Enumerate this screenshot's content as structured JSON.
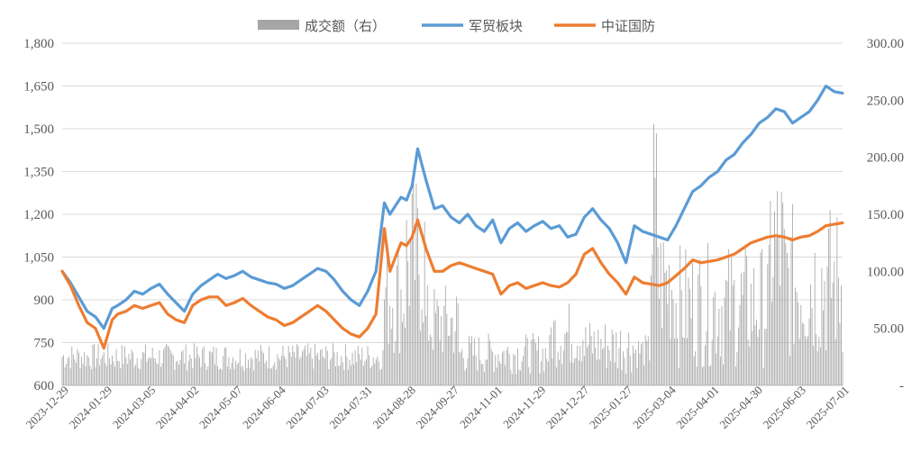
{
  "chart_data": {
    "type": "line",
    "title": "",
    "legend": [
      {
        "name": "成交额（右）",
        "color": "#a6a6a6",
        "kind": "bar"
      },
      {
        "name": "军贸板块",
        "color": "#5b9bd5",
        "kind": "line"
      },
      {
        "name": "中证国防",
        "color": "#ed7d31",
        "kind": "line"
      }
    ],
    "legend_position": "top",
    "y_left": {
      "min": 600,
      "max": 1800,
      "ticks": [
        "600",
        "750",
        "900",
        "1,050",
        "1,200",
        "1,350",
        "1,500",
        "1,650",
        "1,800"
      ]
    },
    "y_right": {
      "min": 0,
      "max": 300,
      "ticks": [
        "-",
        "50.00",
        "100.00",
        "150.00",
        "200.00",
        "250.00",
        "300.00"
      ]
    },
    "x_ticks": [
      "2023-12-29",
      "2024-01-29",
      "2024-03-05",
      "2024-04-02",
      "2024-05-07",
      "2024-06-04",
      "2024-07-03",
      "2024-07-31",
      "2024-08-28",
      "2024-09-27",
      "2024-11-01",
      "2024-11-29",
      "2024-12-27",
      "2025-01-27",
      "2025-03-04",
      "2025-04-01",
      "2025-04-30",
      "2025-06-03",
      "2025-07-01"
    ],
    "grid": "horizontal",
    "series": [
      {
        "name": "军贸板块",
        "axis": "left",
        "color": "#5b9bd5",
        "x_index": [
          0,
          6,
          12,
          18,
          24,
          30,
          36,
          40,
          46,
          52,
          58,
          64,
          70,
          76,
          82,
          88,
          94,
          100,
          106,
          112,
          118,
          124,
          130,
          136,
          142,
          148,
          154,
          160,
          166,
          172,
          178,
          184,
          190,
          196,
          202,
          208,
          214,
          220,
          226,
          232,
          236,
          240,
          244,
          248,
          252,
          256,
          262,
          268,
          274,
          280,
          286,
          292,
          298,
          304,
          310,
          316,
          322,
          328,
          334,
          340,
          346,
          352,
          358,
          364,
          370,
          376,
          382,
          388,
          394,
          400,
          406,
          412,
          418,
          424,
          430,
          436,
          442,
          448,
          454,
          460,
          466,
          472,
          478,
          484,
          490,
          496,
          502,
          508,
          514,
          520,
          526,
          532,
          538,
          544,
          550,
          556,
          562
        ],
        "values": [
          1000,
          960,
          910,
          860,
          840,
          800,
          870,
          880,
          900,
          930,
          920,
          940,
          955,
          920,
          890,
          860,
          920,
          950,
          970,
          990,
          975,
          985,
          1000,
          980,
          970,
          960,
          955,
          940,
          950,
          970,
          990,
          1010,
          1000,
          970,
          930,
          900,
          880,
          930,
          1000,
          1240,
          1200,
          1230,
          1260,
          1250,
          1300,
          1430,
          1320,
          1220,
          1230,
          1190,
          1170,
          1200,
          1160,
          1140,
          1180,
          1100,
          1150,
          1170,
          1140,
          1160,
          1175,
          1150,
          1160,
          1120,
          1130,
          1190,
          1220,
          1180,
          1150,
          1100,
          1030,
          1160,
          1140,
          1130,
          1120,
          1110,
          1160,
          1220,
          1280,
          1300,
          1330,
          1350,
          1390,
          1410,
          1450,
          1480,
          1520,
          1540,
          1570,
          1560,
          1520,
          1540,
          1560,
          1600,
          1650,
          1630,
          1625
        ]
      },
      {
        "name": "中证国防",
        "axis": "left",
        "color": "#ed7d31",
        "x_index": [
          0,
          6,
          12,
          18,
          24,
          30,
          36,
          40,
          46,
          52,
          58,
          64,
          70,
          76,
          82,
          88,
          94,
          100,
          106,
          112,
          118,
          124,
          130,
          136,
          142,
          148,
          154,
          160,
          166,
          172,
          178,
          184,
          190,
          196,
          202,
          208,
          214,
          220,
          226,
          232,
          236,
          240,
          244,
          248,
          252,
          256,
          262,
          268,
          274,
          280,
          286,
          292,
          298,
          304,
          310,
          316,
          322,
          328,
          334,
          340,
          346,
          352,
          358,
          364,
          370,
          376,
          382,
          388,
          394,
          400,
          406,
          412,
          418,
          424,
          430,
          436,
          442,
          448,
          454,
          460,
          466,
          472,
          478,
          484,
          490,
          496,
          502,
          508,
          514,
          520,
          526,
          532,
          538,
          544,
          550,
          556,
          562
        ],
        "values": [
          1000,
          950,
          880,
          820,
          800,
          730,
          830,
          850,
          860,
          880,
          870,
          880,
          890,
          850,
          830,
          820,
          880,
          900,
          910,
          910,
          880,
          890,
          905,
          880,
          860,
          840,
          830,
          810,
          820,
          840,
          860,
          880,
          860,
          830,
          800,
          780,
          770,
          800,
          850,
          1150,
          1000,
          1050,
          1100,
          1090,
          1120,
          1180,
          1080,
          1000,
          1000,
          1020,
          1030,
          1020,
          1010,
          1000,
          990,
          920,
          950,
          960,
          940,
          950,
          960,
          950,
          945,
          960,
          990,
          1060,
          1080,
          1030,
          990,
          960,
          920,
          980,
          960,
          955,
          950,
          960,
          985,
          1010,
          1040,
          1030,
          1035,
          1040,
          1050,
          1060,
          1080,
          1100,
          1110,
          1120,
          1125,
          1120,
          1110,
          1120,
          1125,
          1140,
          1160,
          1165,
          1170
        ]
      }
    ],
    "bars": {
      "name": "成交额（右）",
      "axis": "right",
      "color": "#a6a6a6",
      "segments": [
        {
          "from": 0,
          "to": 232,
          "base": 25,
          "amp": 12
        },
        {
          "from": 232,
          "to": 248,
          "base": 80,
          "amp": 55
        },
        {
          "from": 248,
          "to": 262,
          "base": 110,
          "amp": 75
        },
        {
          "from": 262,
          "to": 286,
          "base": 55,
          "amp": 35
        },
        {
          "from": 286,
          "to": 352,
          "base": 28,
          "amp": 18
        },
        {
          "from": 352,
          "to": 376,
          "base": 45,
          "amp": 30
        },
        {
          "from": 376,
          "to": 412,
          "base": 35,
          "amp": 25
        },
        {
          "from": 412,
          "to": 424,
          "base": 30,
          "amp": 15
        },
        {
          "from": 424,
          "to": 430,
          "base": 140,
          "amp": 110
        },
        {
          "from": 430,
          "to": 442,
          "base": 90,
          "amp": 60
        },
        {
          "from": 442,
          "to": 510,
          "base": 70,
          "amp": 55
        },
        {
          "from": 510,
          "to": 520,
          "base": 120,
          "amp": 80
        },
        {
          "from": 520,
          "to": 563,
          "base": 90,
          "amp": 70
        }
      ]
    }
  }
}
